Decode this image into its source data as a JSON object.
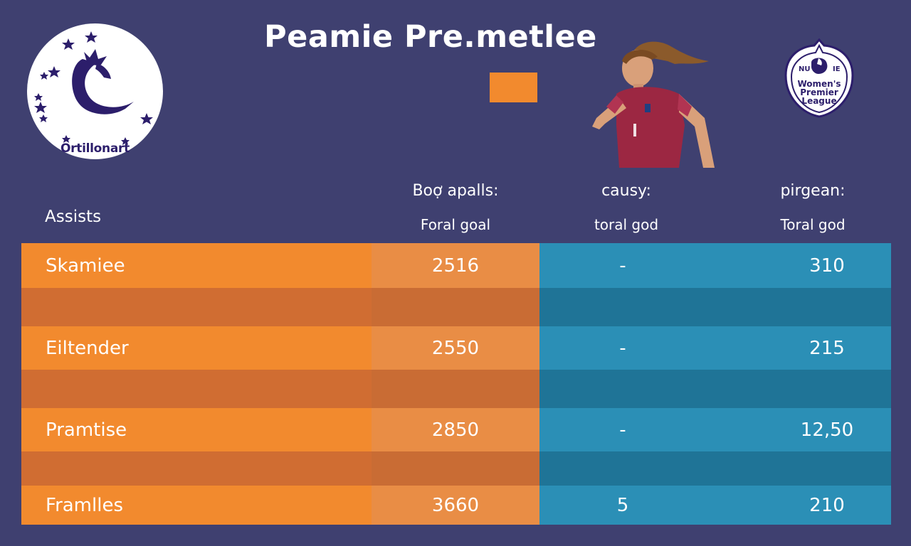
{
  "title": "Peamie Pre.metlee",
  "left_logo": {
    "text": "Ortillonart",
    "icon": "dragon-crest-icon"
  },
  "right_logo": {
    "arc_left": "NU A",
    "arc_right": "IE",
    "text_lines": [
      "Women's",
      "Premier",
      "League"
    ]
  },
  "player_image": {
    "icon": "running-player-icon"
  },
  "colors": {
    "background": "#3f4070",
    "orange": "#f28a2e",
    "orange_dark": "#d06d32",
    "blue": "#2b8fb6",
    "blue_dark": "#1f7497",
    "logo_purple": "#2c1e6b"
  },
  "table": {
    "row_header": "Assists",
    "columns": [
      {
        "header": "Boợ apalls:",
        "sub": "Foral goal"
      },
      {
        "header": "causy:",
        "sub": "toral god"
      },
      {
        "header": "pirgean:",
        "sub": "Toral god"
      }
    ],
    "rows": [
      {
        "name": "Skamiee",
        "goal": "2516",
        "causy": "-",
        "pirgean": "310"
      },
      {
        "name": "Eiltender",
        "goal": "2550",
        "causy": "-",
        "pirgean": "215"
      },
      {
        "name": "Pramtise",
        "goal": "2850",
        "causy": "-",
        "pirgean": "12,50"
      },
      {
        "name": "Framlles",
        "goal": "3660",
        "causy": "5",
        "pirgean": "210"
      }
    ]
  }
}
